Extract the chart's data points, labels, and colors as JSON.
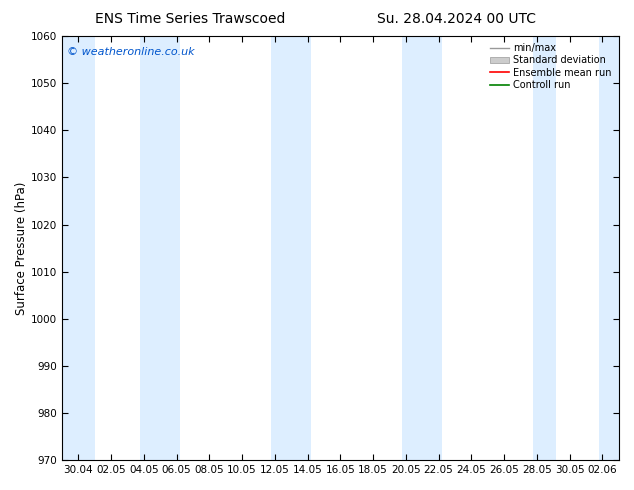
{
  "title_left": "ENS Time Series Trawscoed",
  "title_right": "Su. 28.04.2024 00 UTC",
  "ylabel": "Surface Pressure (hPa)",
  "ylim": [
    970,
    1060
  ],
  "yticks": [
    970,
    980,
    990,
    1000,
    1010,
    1020,
    1030,
    1040,
    1050,
    1060
  ],
  "copyright_text": "© weatheronline.co.uk",
  "copyright_color": "#0055cc",
  "background_color": "#ffffff",
  "plot_bg_color": "#ffffff",
  "band_color": "#ddeeff",
  "xtick_labels": [
    "30.04",
    "02.05",
    "04.05",
    "06.05",
    "08.05",
    "10.05",
    "12.05",
    "14.05",
    "16.05",
    "18.05",
    "20.05",
    "22.05",
    "24.05",
    "26.05",
    "28.05",
    "30.05",
    "02.06"
  ],
  "legend_entries": [
    "min/max",
    "Standard deviation",
    "Ensemble mean run",
    "Controll run"
  ],
  "legend_colors": [
    "#aaaaaa",
    "#cccccc",
    "#ff0000",
    "#008000"
  ],
  "title_fontsize": 10,
  "tick_fontsize": 7.5,
  "ylabel_fontsize": 8.5
}
